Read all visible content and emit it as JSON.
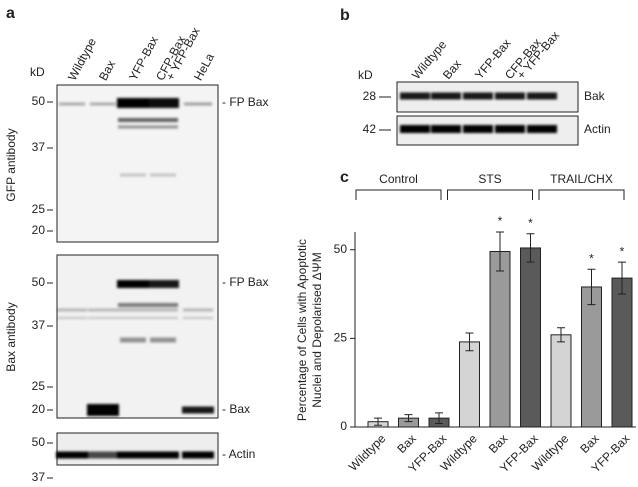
{
  "panel_a": {
    "label": "a",
    "kd": "kD",
    "lanes": [
      "Wildtype",
      "Bax",
      "YFP-Bax",
      "CFP-Bax",
      "+ YFP-Bax",
      "HeLa"
    ],
    "blots": [
      {
        "antibody": "GFP antibody",
        "markers": [
          50,
          37,
          25,
          20
        ],
        "bands": [
          "- FP Bax"
        ]
      },
      {
        "antibody": "Bax antibody",
        "markers": [
          50,
          37,
          25,
          20
        ],
        "bands": [
          "- FP Bax",
          "- Bax"
        ]
      },
      {
        "markers": [
          50,
          37
        ],
        "bands": [
          "- Actin"
        ]
      }
    ]
  },
  "panel_b": {
    "label": "b",
    "kd": "kD",
    "lanes": [
      "Wildtype",
      "Bax",
      "YFP-Bax",
      "CFP-Bax",
      "+ YFP-Bax"
    ],
    "blots": [
      {
        "marker": 28,
        "band": "Bak"
      },
      {
        "marker": 42,
        "band": "Actin"
      }
    ]
  },
  "chart_data": {
    "type": "bar",
    "panel_label": "c",
    "y_label": [
      "Percentage of Cells with Apoptotic",
      "Nuclei and Depolarised ΔΨM"
    ],
    "groups": [
      "Control",
      "STS",
      "TRAIL/CHX"
    ],
    "categories": [
      "Wildtype",
      "Bax",
      "YFP-Bax",
      "Wildtype",
      "Bax",
      "YFP-Bax",
      "Wildtype",
      "Bax",
      "YFP-Bax"
    ],
    "values": [
      1.5,
      2.5,
      2.5,
      24,
      49.5,
      50.5,
      26,
      39.5,
      42
    ],
    "errors": [
      1,
      1,
      1.5,
      2.5,
      5.5,
      4,
      2,
      5,
      4.5
    ],
    "colors": [
      "#d4d4d4",
      "#9a9a9a",
      "#5a5a5a",
      "#d4d4d4",
      "#9a9a9a",
      "#5a5a5a",
      "#d4d4d4",
      "#9a9a9a",
      "#5a5a5a"
    ],
    "markers": [
      null,
      null,
      null,
      null,
      "*",
      "*",
      null,
      "*",
      "*"
    ],
    "ylim": [
      0,
      55
    ],
    "yticks": [
      0,
      25,
      50
    ]
  }
}
